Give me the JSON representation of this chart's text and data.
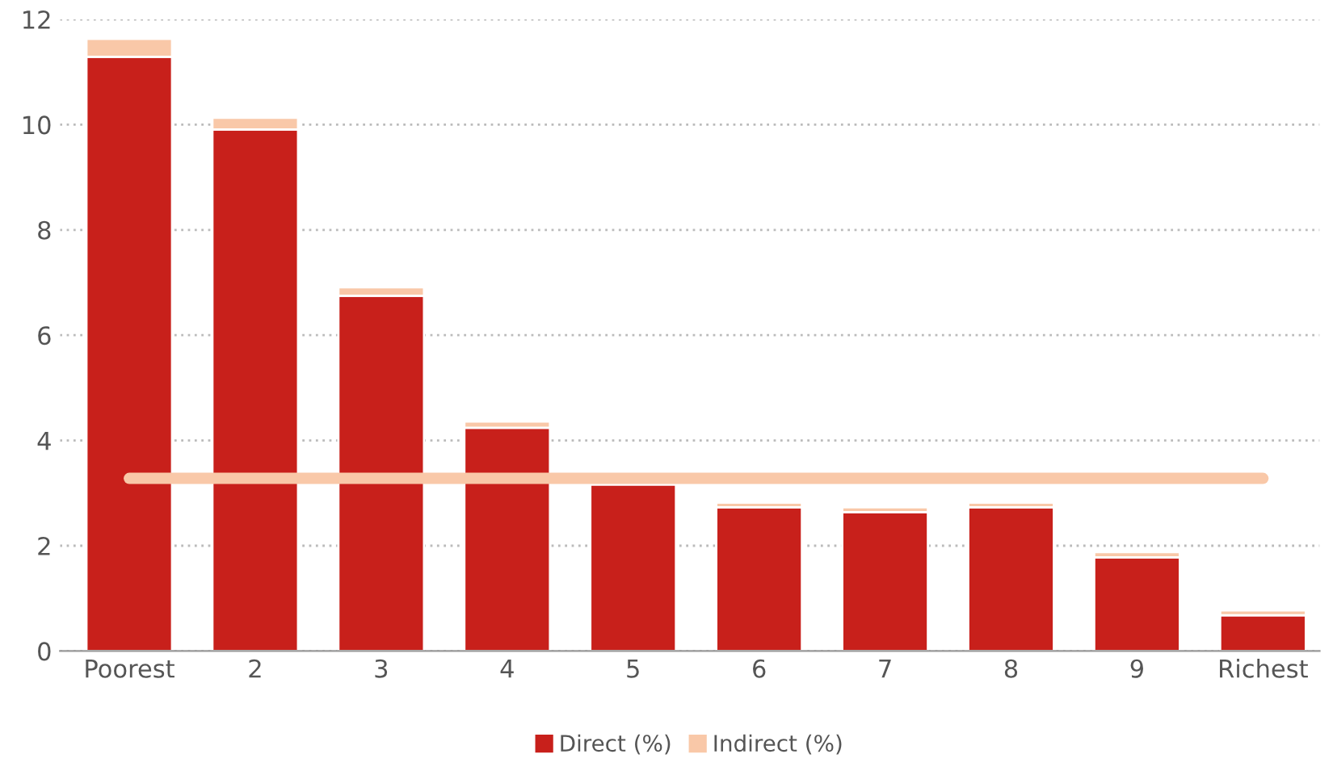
{
  "chart_data": {
    "type": "bar",
    "stacked": true,
    "categories": [
      "Poorest",
      "2",
      "3",
      "4",
      "5",
      "6",
      "7",
      "8",
      "9",
      "Richest"
    ],
    "series": [
      {
        "name": "Direct (%)",
        "color": "#c8201b",
        "values": [
          11.29,
          9.91,
          6.75,
          4.24,
          3.16,
          2.73,
          2.64,
          2.73,
          1.78,
          0.68
        ]
      },
      {
        "name": "Indirect (%)",
        "color": "#f9c8a8",
        "values": [
          0.34,
          0.22,
          0.16,
          0.12,
          null,
          0.09,
          0.09,
          0.09,
          0.1,
          0.09
        ]
      },
      {
        "type": "line",
        "color": "#f9c8a8",
        "values": [
          3.28,
          3.28,
          3.28,
          3.28,
          3.28,
          3.28,
          3.28,
          3.28,
          3.28,
          3.28
        ]
      }
    ],
    "ylim": [
      0,
      12
    ],
    "yticks": [
      0,
      2,
      4,
      6,
      8,
      10,
      12
    ],
    "grid": "y",
    "legend": "bottom"
  }
}
